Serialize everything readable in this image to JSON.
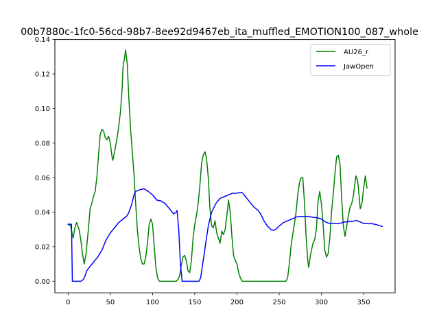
{
  "chart_data": {
    "type": "line",
    "title": "00b7880c-1fc0-56cd-98b7-8ee92d9467eb_ita_muffled_EMOTION100_087_whole",
    "xlabel": "",
    "ylabel": "",
    "xlim": [
      -15.7,
      387.3
    ],
    "ylim": [
      -0.0067,
      0.14
    ],
    "xticks": [
      0,
      50,
      100,
      150,
      200,
      250,
      300,
      350
    ],
    "yticks": [
      0.0,
      0.02,
      0.04,
      0.06,
      0.08,
      0.1,
      0.12,
      0.14
    ],
    "ytick_labels": [
      "0.00",
      "0.02",
      "0.04",
      "0.06",
      "0.08",
      "0.10",
      "0.12",
      "0.14"
    ],
    "grid": false,
    "legend_position": "top-right",
    "series": [
      {
        "name": "AU26_r",
        "color": "#008000",
        "points": [
          [
            0,
            0.033
          ],
          [
            3,
            0.032
          ],
          [
            5,
            0.027
          ],
          [
            6,
            0.025
          ],
          [
            8,
            0.031
          ],
          [
            10,
            0.034
          ],
          [
            13,
            0.03
          ],
          [
            15,
            0.024
          ],
          [
            17,
            0.016
          ],
          [
            19,
            0.01
          ],
          [
            21,
            0.015
          ],
          [
            24,
            0.03
          ],
          [
            26,
            0.042
          ],
          [
            28,
            0.045
          ],
          [
            30,
            0.049
          ],
          [
            32,
            0.052
          ],
          [
            34,
            0.06
          ],
          [
            36,
            0.073
          ],
          [
            38,
            0.085
          ],
          [
            40,
            0.088
          ],
          [
            42,
            0.087
          ],
          [
            44,
            0.083
          ],
          [
            46,
            0.082
          ],
          [
            48,
            0.084
          ],
          [
            50,
            0.08
          ],
          [
            52,
            0.072
          ],
          [
            53,
            0.07
          ],
          [
            55,
            0.075
          ],
          [
            58,
            0.083
          ],
          [
            60,
            0.09
          ],
          [
            62,
            0.098
          ],
          [
            64,
            0.112
          ],
          [
            65,
            0.124
          ],
          [
            67,
            0.13
          ],
          [
            68,
            0.134
          ],
          [
            70,
            0.126
          ],
          [
            72,
            0.105
          ],
          [
            74,
            0.088
          ],
          [
            76,
            0.075
          ],
          [
            78,
            0.062
          ],
          [
            80,
            0.045
          ],
          [
            82,
            0.03
          ],
          [
            84,
            0.02
          ],
          [
            86,
            0.013
          ],
          [
            88,
            0.01
          ],
          [
            90,
            0.01
          ],
          [
            92,
            0.014
          ],
          [
            94,
            0.022
          ],
          [
            96,
            0.033
          ],
          [
            98,
            0.036
          ],
          [
            100,
            0.033
          ],
          [
            102,
            0.02
          ],
          [
            104,
            0.008
          ],
          [
            106,
            0.002
          ],
          [
            108,
            0.0
          ],
          [
            120,
            0.0
          ],
          [
            128,
            0.0
          ],
          [
            130,
            0.001
          ],
          [
            132,
            0.003
          ],
          [
            134,
            0.009
          ],
          [
            136,
            0.014
          ],
          [
            138,
            0.015
          ],
          [
            140,
            0.012
          ],
          [
            142,
            0.006
          ],
          [
            144,
            0.005
          ],
          [
            146,
            0.012
          ],
          [
            148,
            0.025
          ],
          [
            150,
            0.033
          ],
          [
            152,
            0.038
          ],
          [
            154,
            0.045
          ],
          [
            156,
            0.055
          ],
          [
            158,
            0.068
          ],
          [
            160,
            0.073
          ],
          [
            162,
            0.075
          ],
          [
            164,
            0.071
          ],
          [
            166,
            0.06
          ],
          [
            168,
            0.042
          ],
          [
            170,
            0.032
          ],
          [
            172,
            0.031
          ],
          [
            174,
            0.035
          ],
          [
            176,
            0.028
          ],
          [
            178,
            0.025
          ],
          [
            180,
            0.022
          ],
          [
            182,
            0.029
          ],
          [
            184,
            0.027
          ],
          [
            186,
            0.03
          ],
          [
            188,
            0.038
          ],
          [
            190,
            0.047
          ],
          [
            192,
            0.04
          ],
          [
            194,
            0.026
          ],
          [
            196,
            0.015
          ],
          [
            198,
            0.012
          ],
          [
            200,
            0.01
          ],
          [
            202,
            0.005
          ],
          [
            204,
            0.002
          ],
          [
            206,
            0.0
          ],
          [
            220,
            0.0
          ],
          [
            240,
            0.0
          ],
          [
            258,
            0.0
          ],
          [
            260,
            0.002
          ],
          [
            262,
            0.01
          ],
          [
            264,
            0.02
          ],
          [
            266,
            0.027
          ],
          [
            268,
            0.033
          ],
          [
            270,
            0.04
          ],
          [
            272,
            0.05
          ],
          [
            274,
            0.057
          ],
          [
            276,
            0.06
          ],
          [
            278,
            0.06
          ],
          [
            280,
            0.045
          ],
          [
            282,
            0.025
          ],
          [
            284,
            0.011
          ],
          [
            285,
            0.008
          ],
          [
            287,
            0.015
          ],
          [
            290,
            0.022
          ],
          [
            292,
            0.024
          ],
          [
            294,
            0.03
          ],
          [
            296,
            0.046
          ],
          [
            298,
            0.052
          ],
          [
            300,
            0.045
          ],
          [
            302,
            0.033
          ],
          [
            304,
            0.018
          ],
          [
            306,
            0.014
          ],
          [
            308,
            0.016
          ],
          [
            310,
            0.025
          ],
          [
            312,
            0.04
          ],
          [
            314,
            0.05
          ],
          [
            316,
            0.062
          ],
          [
            318,
            0.072
          ],
          [
            320,
            0.073
          ],
          [
            322,
            0.068
          ],
          [
            324,
            0.048
          ],
          [
            326,
            0.032
          ],
          [
            328,
            0.026
          ],
          [
            330,
            0.032
          ],
          [
            332,
            0.038
          ],
          [
            334,
            0.043
          ],
          [
            336,
            0.045
          ],
          [
            338,
            0.05
          ],
          [
            340,
            0.058
          ],
          [
            341,
            0.061
          ],
          [
            343,
            0.058
          ],
          [
            345,
            0.048
          ],
          [
            346,
            0.042
          ],
          [
            348,
            0.045
          ],
          [
            350,
            0.054
          ],
          [
            352,
            0.061
          ],
          [
            354,
            0.054
          ]
        ]
      },
      {
        "name": "JawOpen",
        "color": "#0000ff",
        "points": [
          [
            0,
            0.033
          ],
          [
            3,
            0.033
          ],
          [
            4,
            0.033
          ],
          [
            5,
            0.0
          ],
          [
            8,
            0.0
          ],
          [
            15,
            0.0
          ],
          [
            18,
            0.001
          ],
          [
            20,
            0.003
          ],
          [
            22,
            0.006
          ],
          [
            25,
            0.008
          ],
          [
            30,
            0.011
          ],
          [
            35,
            0.014
          ],
          [
            40,
            0.018
          ],
          [
            45,
            0.024
          ],
          [
            50,
            0.028
          ],
          [
            55,
            0.031
          ],
          [
            60,
            0.034
          ],
          [
            65,
            0.036
          ],
          [
            70,
            0.038
          ],
          [
            72,
            0.04
          ],
          [
            75,
            0.044
          ],
          [
            78,
            0.05
          ],
          [
            80,
            0.052
          ],
          [
            85,
            0.053
          ],
          [
            90,
            0.0535
          ],
          [
            95,
            0.052
          ],
          [
            100,
            0.05
          ],
          [
            105,
            0.047
          ],
          [
            110,
            0.0465
          ],
          [
            115,
            0.045
          ],
          [
            120,
            0.042
          ],
          [
            125,
            0.039
          ],
          [
            128,
            0.04
          ],
          [
            129,
            0.041
          ],
          [
            131,
            0.03
          ],
          [
            133,
            0.01
          ],
          [
            135,
            0.0
          ],
          [
            140,
            0.0
          ],
          [
            150,
            0.0
          ],
          [
            155,
            0.0
          ],
          [
            157,
            0.002
          ],
          [
            160,
            0.012
          ],
          [
            163,
            0.022
          ],
          [
            166,
            0.032
          ],
          [
            170,
            0.04
          ],
          [
            175,
            0.045
          ],
          [
            180,
            0.048
          ],
          [
            185,
            0.049
          ],
          [
            190,
            0.05
          ],
          [
            195,
            0.051
          ],
          [
            200,
            0.051
          ],
          [
            205,
            0.0515
          ],
          [
            207,
            0.051
          ],
          [
            210,
            0.049
          ],
          [
            215,
            0.046
          ],
          [
            220,
            0.043
          ],
          [
            225,
            0.041
          ],
          [
            228,
            0.039
          ],
          [
            232,
            0.035
          ],
          [
            236,
            0.032
          ],
          [
            240,
            0.03
          ],
          [
            243,
            0.0295
          ],
          [
            246,
            0.03
          ],
          [
            250,
            0.032
          ],
          [
            255,
            0.034
          ],
          [
            260,
            0.035
          ],
          [
            265,
            0.036
          ],
          [
            270,
            0.0372
          ],
          [
            275,
            0.0375
          ],
          [
            280,
            0.0375
          ],
          [
            285,
            0.0375
          ],
          [
            290,
            0.037
          ],
          [
            295,
            0.0368
          ],
          [
            300,
            0.036
          ],
          [
            303,
            0.035
          ],
          [
            306,
            0.034
          ],
          [
            310,
            0.0335
          ],
          [
            315,
            0.0335
          ],
          [
            320,
            0.0333
          ],
          [
            325,
            0.034
          ],
          [
            330,
            0.0345
          ],
          [
            335,
            0.0345
          ],
          [
            340,
            0.035
          ],
          [
            342,
            0.0352
          ],
          [
            345,
            0.0345
          ],
          [
            350,
            0.0335
          ],
          [
            355,
            0.0333
          ],
          [
            360,
            0.0333
          ],
          [
            365,
            0.0328
          ],
          [
            370,
            0.032
          ],
          [
            372,
            0.0318
          ]
        ]
      }
    ]
  }
}
